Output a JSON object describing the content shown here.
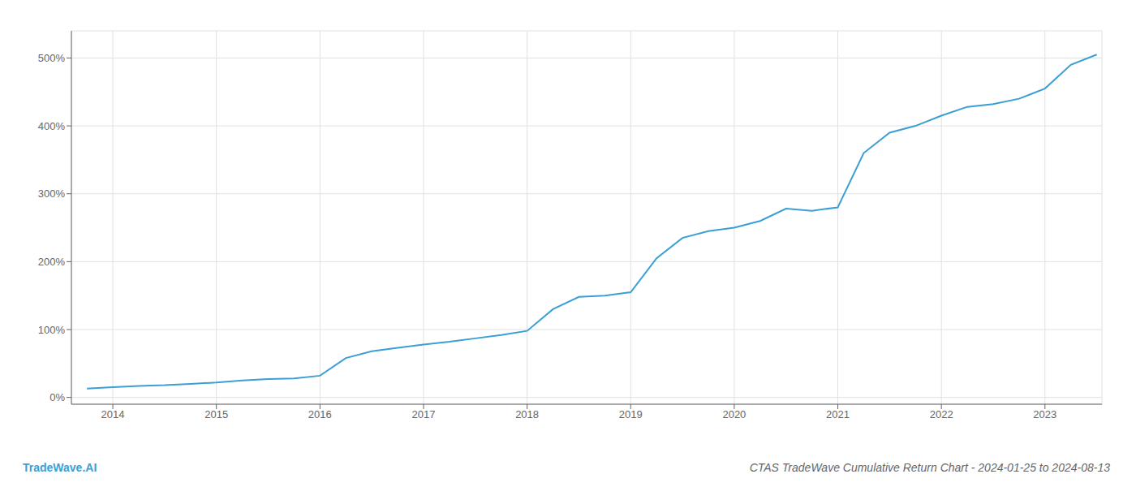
{
  "chart_data": {
    "type": "line",
    "title": "CTAS TradeWave Cumulative Return Chart - 2024-01-25 to 2024-08-13",
    "annotations": [
      "TradeWave.AI"
    ],
    "color": "#3a9fd4",
    "grid": true,
    "x": [
      2013.75,
      2014.0,
      2014.25,
      2014.5,
      2014.75,
      2015.0,
      2015.25,
      2015.5,
      2015.75,
      2016.0,
      2016.25,
      2016.5,
      2016.75,
      2017.0,
      2017.25,
      2017.5,
      2017.75,
      2018.0,
      2018.25,
      2018.5,
      2018.75,
      2019.0,
      2019.25,
      2019.5,
      2019.75,
      2020.0,
      2020.25,
      2020.5,
      2020.75,
      2021.0,
      2021.25,
      2021.5,
      2021.75,
      2022.0,
      2022.25,
      2022.5,
      2022.75,
      2023.0,
      2023.25,
      2023.5
    ],
    "values": [
      13,
      15,
      17,
      18,
      20,
      22,
      25,
      27,
      28,
      32,
      58,
      68,
      73,
      78,
      82,
      87,
      92,
      98,
      130,
      148,
      150,
      155,
      205,
      235,
      245,
      250,
      260,
      278,
      275,
      280,
      360,
      390,
      400,
      415,
      428,
      432,
      440,
      455,
      490,
      505
    ],
    "xlim": [
      2013.6,
      2023.55
    ],
    "xticks": [
      2014,
      2015,
      2016,
      2017,
      2018,
      2019,
      2020,
      2021,
      2022,
      2023
    ],
    "ylim": [
      -10,
      540
    ],
    "yticks": [
      {
        "value": 0,
        "label": "0%"
      },
      {
        "value": 100,
        "label": "100%"
      },
      {
        "value": 200,
        "label": "200%"
      },
      {
        "value": 300,
        "label": "300%"
      },
      {
        "value": 400,
        "label": "400%"
      },
      {
        "value": 500,
        "label": "500%"
      }
    ]
  }
}
